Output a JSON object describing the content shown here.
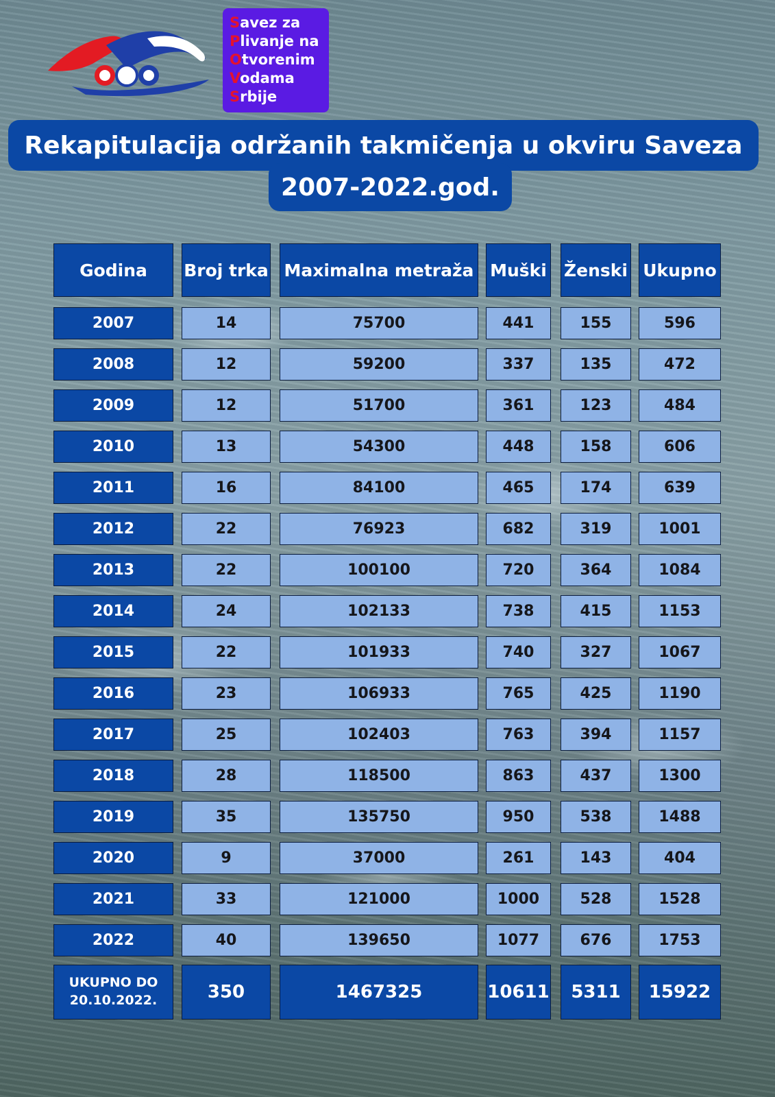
{
  "brand": {
    "lines": [
      {
        "initial": "S",
        "rest": "avez za"
      },
      {
        "initial": "P",
        "rest": "livanje na"
      },
      {
        "initial": "O",
        "rest": "tvorenim"
      },
      {
        "initial": "V",
        "rest": "odama"
      },
      {
        "initial": "S",
        "rest": "rbije"
      }
    ],
    "colors": {
      "box": "#5a1be3",
      "initials": "#e5122d",
      "text": "#ffffff"
    }
  },
  "title": {
    "line1": "Rekapitulacija održanih takmičenja u okviru Saveza",
    "line2": "2007-2022.god."
  },
  "table": {
    "headers": [
      "Godina",
      "Broj trka",
      "Maximalna metraža",
      "Muški",
      "Ženski",
      "Ukupno"
    ],
    "rows": [
      [
        "2007",
        "14",
        "75700",
        "441",
        "155",
        "596"
      ],
      [
        "2008",
        "12",
        "59200",
        "337",
        "135",
        "472"
      ],
      [
        "2009",
        "12",
        "51700",
        "361",
        "123",
        "484"
      ],
      [
        "2010",
        "13",
        "54300",
        "448",
        "158",
        "606"
      ],
      [
        "2011",
        "16",
        "84100",
        "465",
        "174",
        "639"
      ],
      [
        "2012",
        "22",
        "76923",
        "682",
        "319",
        "1001"
      ],
      [
        "2013",
        "22",
        "100100",
        "720",
        "364",
        "1084"
      ],
      [
        "2014",
        "24",
        "102133",
        "738",
        "415",
        "1153"
      ],
      [
        "2015",
        "22",
        "101933",
        "740",
        "327",
        "1067"
      ],
      [
        "2016",
        "23",
        "106933",
        "765",
        "425",
        "1190"
      ],
      [
        "2017",
        "25",
        "102403",
        "763",
        "394",
        "1157"
      ],
      [
        "2018",
        "28",
        "118500",
        "863",
        "437",
        "1300"
      ],
      [
        "2019",
        "35",
        "135750",
        "950",
        "538",
        "1488"
      ],
      [
        "2020",
        "9",
        "37000",
        "261",
        "143",
        "404"
      ],
      [
        "2021",
        "33",
        "121000",
        "1000",
        "528",
        "1528"
      ],
      [
        "2022",
        "40",
        "139650",
        "1077",
        "676",
        "1753"
      ]
    ],
    "total": [
      "UKUPNO DO\n20.10.2022.",
      "350",
      "1467325",
      "10611",
      "5311",
      "15922"
    ]
  },
  "colors": {
    "dark_blue": "#0b48a5",
    "light_blue": "#8fb3e6"
  }
}
